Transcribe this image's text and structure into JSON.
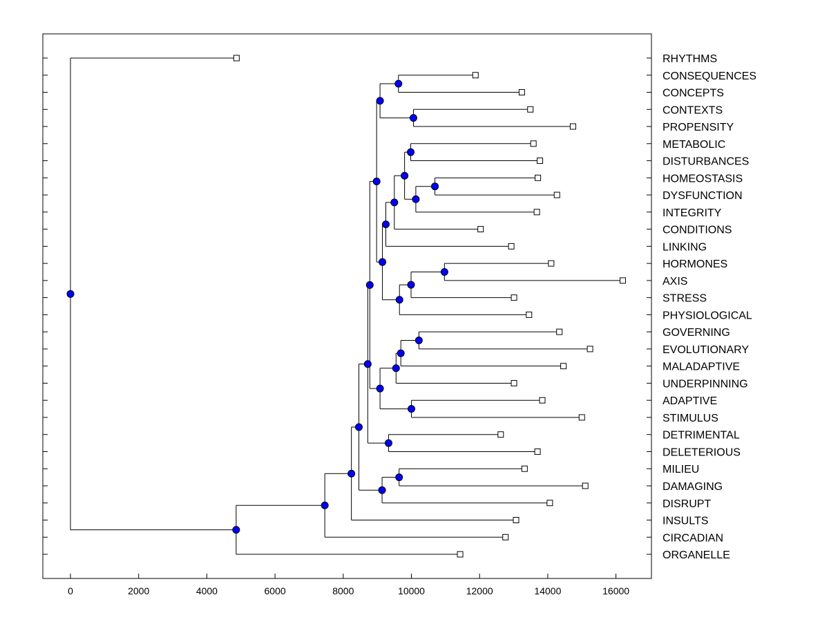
{
  "chart_data": {
    "type": "dendrogram",
    "title": "",
    "xlabel": "",
    "ylabel": "",
    "xlim": [
      -800,
      17000
    ],
    "xticks": [
      0,
      2000,
      4000,
      6000,
      8000,
      10000,
      12000,
      14000,
      16000
    ],
    "colors": {
      "node": "#0000ff",
      "line": "#000000",
      "leaf": "#ffffff"
    },
    "leaves": [
      {
        "label": "RHYTHMS",
        "value": 4870
      },
      {
        "label": "CONSEQUENCES",
        "value": 11880
      },
      {
        "label": "CONCEPTS",
        "value": 13240
      },
      {
        "label": "CONTEXTS",
        "value": 13490
      },
      {
        "label": "PROPENSITY",
        "value": 14740
      },
      {
        "label": "METABOLIC",
        "value": 13580
      },
      {
        "label": "DISTURBANCES",
        "value": 13770
      },
      {
        "label": "HOMEOSTASIS",
        "value": 13710
      },
      {
        "label": "DYSFUNCTION",
        "value": 14270
      },
      {
        "label": "INTEGRITY",
        "value": 13680
      },
      {
        "label": "CONDITIONS",
        "value": 12030
      },
      {
        "label": "LINKING",
        "value": 12930
      },
      {
        "label": "HORMONES",
        "value": 14100
      },
      {
        "label": "AXIS",
        "value": 16200
      },
      {
        "label": "STRESS",
        "value": 13010
      },
      {
        "label": "PHYSIOLOGICAL",
        "value": 13450
      },
      {
        "label": "GOVERNING",
        "value": 14340
      },
      {
        "label": "EVOLUTIONARY",
        "value": 15240
      },
      {
        "label": "MALADAPTIVE",
        "value": 14460
      },
      {
        "label": "UNDERPINNING",
        "value": 13010
      },
      {
        "label": "ADAPTIVE",
        "value": 13840
      },
      {
        "label": "STIMULUS",
        "value": 15000
      },
      {
        "label": "DETRIMENTAL",
        "value": 12620
      },
      {
        "label": "DELETERIOUS",
        "value": 13700
      },
      {
        "label": "MILIEU",
        "value": 13320
      },
      {
        "label": "DAMAGING",
        "value": 15100
      },
      {
        "label": "DISRUPT",
        "value": 14060
      },
      {
        "label": "INSULTS",
        "value": 13070
      },
      {
        "label": "CIRCADIAN",
        "value": 12760
      },
      {
        "label": "ORGANELLE",
        "value": 11430
      }
    ],
    "merges": [
      {
        "id": "n1",
        "value": 9620,
        "children": [
          "CONSEQUENCES",
          "CONCEPTS"
        ]
      },
      {
        "id": "n2",
        "value": 10060,
        "children": [
          "CONTEXTS",
          "PROPENSITY"
        ]
      },
      {
        "id": "n3",
        "value": 9080,
        "children": [
          "n1",
          "n2"
        ]
      },
      {
        "id": "n4",
        "value": 9980,
        "children": [
          "METABOLIC",
          "DISTURBANCES"
        ]
      },
      {
        "id": "n5",
        "value": 10690,
        "children": [
          "HOMEOSTASIS",
          "DYSFUNCTION"
        ]
      },
      {
        "id": "n6",
        "value": 10130,
        "children": [
          "n5",
          "INTEGRITY"
        ]
      },
      {
        "id": "n7",
        "value": 9800,
        "children": [
          "n4",
          "n6"
        ]
      },
      {
        "id": "n8",
        "value": 9500,
        "children": [
          "n7",
          "CONDITIONS"
        ]
      },
      {
        "id": "n9",
        "value": 9250,
        "children": [
          "n8",
          "LINKING"
        ]
      },
      {
        "id": "n10",
        "value": 10970,
        "children": [
          "HORMONES",
          "AXIS"
        ]
      },
      {
        "id": "n11",
        "value": 9990,
        "children": [
          "n10",
          "STRESS"
        ]
      },
      {
        "id": "n12",
        "value": 9650,
        "children": [
          "n11",
          "PHYSIOLOGICAL"
        ]
      },
      {
        "id": "n13",
        "value": 9150,
        "children": [
          "n9",
          "n12"
        ]
      },
      {
        "id": "n14",
        "value": 8980,
        "children": [
          "n3",
          "n13"
        ]
      },
      {
        "id": "n15",
        "value": 10220,
        "children": [
          "GOVERNING",
          "EVOLUTIONARY"
        ]
      },
      {
        "id": "n16",
        "value": 9690,
        "children": [
          "n15",
          "MALADAPTIVE"
        ]
      },
      {
        "id": "n17",
        "value": 9550,
        "children": [
          "n16",
          "UNDERPINNING"
        ]
      },
      {
        "id": "n18",
        "value": 10000,
        "children": [
          "ADAPTIVE",
          "STIMULUS"
        ]
      },
      {
        "id": "n19",
        "value": 9080,
        "children": [
          "n17",
          "n18"
        ]
      },
      {
        "id": "n20",
        "value": 8780,
        "children": [
          "n14",
          "n19"
        ]
      },
      {
        "id": "n21",
        "value": 9330,
        "children": [
          "DETRIMENTAL",
          "DELETERIOUS"
        ]
      },
      {
        "id": "n22",
        "value": 8720,
        "children": [
          "n20",
          "n21"
        ]
      },
      {
        "id": "n23",
        "value": 9640,
        "children": [
          "MILIEU",
          "DAMAGING"
        ]
      },
      {
        "id": "n24",
        "value": 9140,
        "children": [
          "n23",
          "DISRUPT"
        ]
      },
      {
        "id": "n25",
        "value": 8460,
        "children": [
          "n22",
          "n24"
        ]
      },
      {
        "id": "n26",
        "value": 8240,
        "children": [
          "n25",
          "INSULTS"
        ]
      },
      {
        "id": "n27",
        "value": 7460,
        "children": [
          "n26",
          "CIRCADIAN"
        ]
      },
      {
        "id": "n28",
        "value": 4860,
        "children": [
          "n27",
          "ORGANELLE"
        ]
      },
      {
        "id": "n29",
        "value": 0,
        "children": [
          "RHYTHMS",
          "n28"
        ]
      }
    ]
  }
}
